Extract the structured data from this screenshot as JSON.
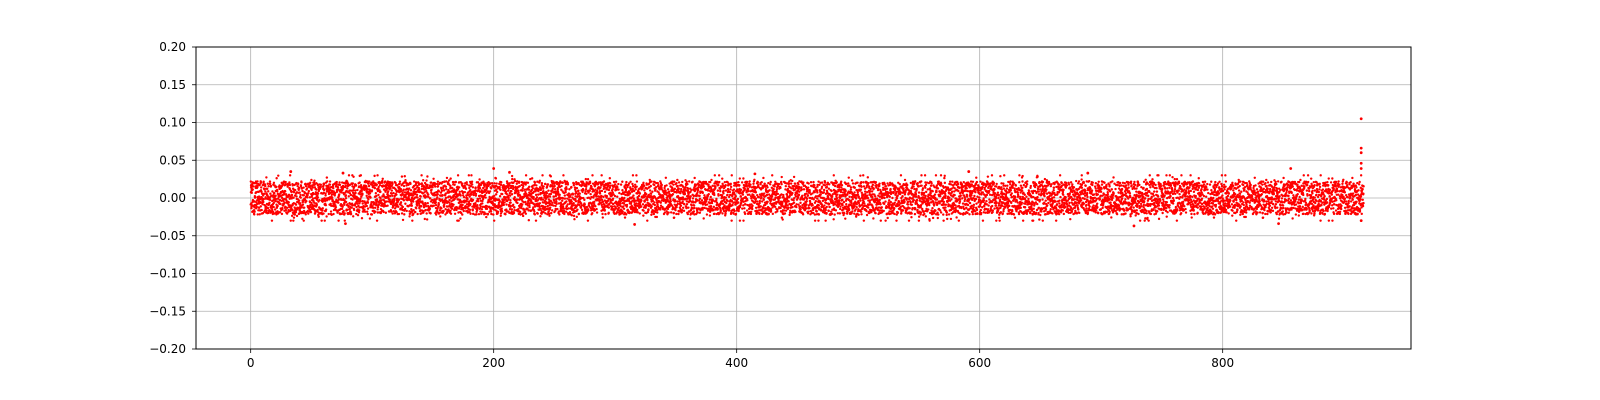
{
  "chart_data": {
    "type": "scatter",
    "title": "",
    "xlabel": "",
    "ylabel": "",
    "xlim": [
      -45,
      955
    ],
    "ylim": [
      -0.2,
      0.2
    ],
    "x_ticks": [
      0,
      200,
      400,
      600,
      800
    ],
    "x_tick_labels": [
      "0",
      "200",
      "400",
      "600",
      "800"
    ],
    "y_ticks": [
      -0.2,
      -0.15,
      -0.1,
      -0.05,
      0.0,
      0.05,
      0.1,
      0.15,
      0.2
    ],
    "y_tick_labels": [
      "−0.20",
      "−0.15",
      "−0.10",
      "−0.05",
      "0.00",
      "0.05",
      "0.10",
      "0.15",
      "0.20"
    ],
    "grid": true,
    "legend": "none",
    "marker_color": "#ff0000",
    "series": [
      {
        "x_range": [
          0,
          916
        ],
        "typical_y_range": [
          -0.022,
          0.022
        ],
        "outliers": [
          {
            "x": 33,
            "y": 0.035
          },
          {
            "x": 76,
            "y": 0.033
          },
          {
            "x": 78,
            "y": -0.034
          },
          {
            "x": 200,
            "y": 0.039
          },
          {
            "x": 213,
            "y": 0.034
          },
          {
            "x": 316,
            "y": -0.035
          },
          {
            "x": 415,
            "y": 0.032
          },
          {
            "x": 591,
            "y": 0.035
          },
          {
            "x": 689,
            "y": 0.033
          },
          {
            "x": 727,
            "y": -0.037
          },
          {
            "x": 846,
            "y": -0.034
          },
          {
            "x": 856,
            "y": 0.039
          },
          {
            "x": 914,
            "y": 0.105
          },
          {
            "x": 914,
            "y": 0.066
          },
          {
            "x": 914,
            "y": 0.06
          },
          {
            "x": 914,
            "y": 0.046
          },
          {
            "x": 914,
            "y": 0.039
          },
          {
            "x": 914,
            "y": -0.03
          }
        ]
      }
    ]
  },
  "colors": {
    "axes": "#000000",
    "grid": "#b0b0b0",
    "background": "#ffffff"
  }
}
